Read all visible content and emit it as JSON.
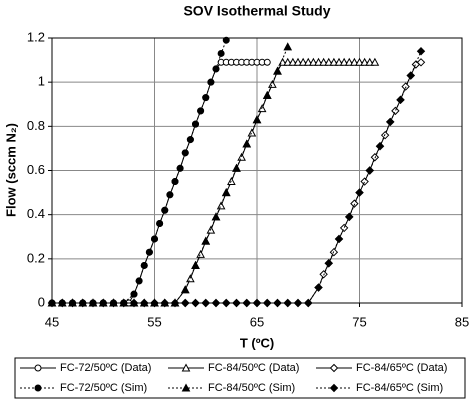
{
  "chart_data": {
    "type": "line",
    "title": "SOV Isothermal Study",
    "x_label": "T (ºC)",
    "y_label": "Flow (sccm N₂)",
    "xlim": [
      45,
      85
    ],
    "xticks": [
      45,
      55,
      65,
      75,
      85
    ],
    "ylim": [
      0,
      1.2
    ],
    "yticks": [
      0,
      0.2,
      0.4,
      0.6,
      0.8,
      1,
      1.2
    ],
    "grid": true,
    "legend": "bottom",
    "series": [
      {
        "name": "FC-72/50ºC (Data)",
        "color": "#000000",
        "marker": "circle",
        "filled": false,
        "dash": "solid",
        "x": [
          45,
          46,
          47,
          48,
          49,
          50,
          51,
          52,
          52.5,
          53,
          53.5,
          54,
          54.5,
          55,
          55.5,
          56,
          56.5,
          57,
          57.5,
          58,
          58.5,
          59,
          59.5,
          60,
          60.5,
          61,
          61.5,
          62,
          62.5,
          63,
          63.5,
          64,
          64.5,
          65,
          65.5,
          66
        ],
        "values": [
          0,
          0,
          0,
          0,
          0,
          0,
          0,
          0,
          0,
          0.04,
          0.1,
          0.17,
          0.23,
          0.29,
          0.36,
          0.42,
          0.49,
          0.55,
          0.61,
          0.68,
          0.74,
          0.81,
          0.87,
          0.93,
          1.0,
          1.06,
          1.09,
          1.09,
          1.09,
          1.09,
          1.09,
          1.09,
          1.09,
          1.09,
          1.09,
          1.09
        ]
      },
      {
        "name": "FC-72/50ºC (Sim)",
        "color": "#000000",
        "marker": "circle",
        "filled": true,
        "dash": "dotted",
        "x": [
          45,
          46,
          47,
          48,
          49,
          50,
          51,
          52,
          53,
          53.5,
          54,
          54.5,
          55,
          55.5,
          56,
          56.5,
          57,
          57.5,
          58,
          58.5,
          59,
          59.5,
          60,
          60.5,
          61,
          61.5,
          62
        ],
        "values": [
          0,
          0,
          0,
          0,
          0,
          0,
          0,
          0,
          0.04,
          0.1,
          0.17,
          0.23,
          0.29,
          0.36,
          0.42,
          0.49,
          0.55,
          0.61,
          0.68,
          0.74,
          0.81,
          0.87,
          0.93,
          1.0,
          1.06,
          1.13,
          1.19
        ]
      },
      {
        "name": "FC-84/50ºC (Data)",
        "color": "#000000",
        "marker": "triangle",
        "filled": false,
        "dash": "solid",
        "x": [
          45,
          46,
          47,
          48,
          49,
          50,
          51,
          52,
          53,
          54,
          55,
          56,
          57,
          58,
          58.5,
          59,
          59.5,
          60,
          60.5,
          61,
          61.5,
          62,
          62.5,
          63,
          63.5,
          64,
          64.5,
          65,
          65.5,
          66,
          66.5,
          67,
          67.5,
          68,
          68.5,
          69,
          69.5,
          70,
          70.5,
          71,
          71.5,
          72,
          72.5,
          73,
          73.5,
          74,
          74.5,
          75,
          75.5,
          76,
          76.5
        ],
        "values": [
          0,
          0,
          0,
          0,
          0,
          0,
          0,
          0,
          0,
          0,
          0,
          0,
          0,
          0.06,
          0.11,
          0.17,
          0.22,
          0.28,
          0.33,
          0.39,
          0.44,
          0.5,
          0.55,
          0.61,
          0.66,
          0.72,
          0.77,
          0.83,
          0.88,
          0.94,
          0.99,
          1.05,
          1.09,
          1.09,
          1.09,
          1.09,
          1.09,
          1.09,
          1.09,
          1.09,
          1.09,
          1.09,
          1.09,
          1.09,
          1.09,
          1.09,
          1.09,
          1.09,
          1.09,
          1.09,
          1.09
        ]
      },
      {
        "name": "FC-84/50ºC (Sim)",
        "color": "#000000",
        "marker": "triangle",
        "filled": true,
        "dash": "dotted",
        "x": [
          45,
          46,
          47,
          48,
          49,
          50,
          51,
          52,
          53,
          54,
          55,
          56,
          57,
          58,
          59,
          60,
          61,
          62,
          63,
          64,
          65,
          66,
          67,
          68
        ],
        "values": [
          0,
          0,
          0,
          0,
          0,
          0,
          0,
          0,
          0,
          0,
          0,
          0,
          0,
          0.06,
          0.17,
          0.28,
          0.39,
          0.5,
          0.61,
          0.72,
          0.83,
          0.94,
          1.05,
          1.16
        ]
      },
      {
        "name": "FC-84/65ºC (Data)",
        "color": "#000000",
        "marker": "diamond",
        "filled": false,
        "dash": "solid",
        "x": [
          45,
          46,
          47,
          48,
          49,
          50,
          51,
          52,
          53,
          54,
          55,
          56,
          57,
          58,
          59,
          60,
          61,
          62,
          63,
          64,
          65,
          66,
          67,
          68,
          69,
          70,
          71,
          71.5,
          72,
          72.5,
          73,
          73.5,
          74,
          74.5,
          75,
          75.5,
          76,
          76.5,
          77,
          77.5,
          78,
          78.5,
          79,
          79.5,
          80,
          80.5,
          81
        ],
        "values": [
          0,
          0,
          0,
          0,
          0,
          0,
          0,
          0,
          0,
          0,
          0,
          0,
          0,
          0,
          0,
          0,
          0,
          0,
          0,
          0,
          0,
          0,
          0,
          0,
          0,
          0,
          0.07,
          0.13,
          0.18,
          0.23,
          0.29,
          0.34,
          0.39,
          0.45,
          0.5,
          0.55,
          0.6,
          0.66,
          0.71,
          0.76,
          0.82,
          0.87,
          0.92,
          0.98,
          1.03,
          1.08,
          1.09
        ]
      },
      {
        "name": "FC-84/65ºC (Sim)",
        "color": "#000000",
        "marker": "diamond",
        "filled": true,
        "dash": "dotted",
        "x": [
          45,
          46,
          47,
          48,
          49,
          50,
          51,
          52,
          53,
          54,
          55,
          56,
          57,
          58,
          59,
          60,
          61,
          62,
          63,
          64,
          65,
          66,
          67,
          68,
          69,
          70,
          71,
          72,
          73,
          74,
          75,
          76,
          77,
          78,
          79,
          80,
          81
        ],
        "values": [
          0,
          0,
          0,
          0,
          0,
          0,
          0,
          0,
          0,
          0,
          0,
          0,
          0,
          0,
          0,
          0,
          0,
          0,
          0,
          0,
          0,
          0,
          0,
          0,
          0,
          0,
          0.07,
          0.18,
          0.29,
          0.39,
          0.5,
          0.6,
          0.71,
          0.82,
          0.92,
          1.03,
          1.14
        ]
      }
    ]
  }
}
